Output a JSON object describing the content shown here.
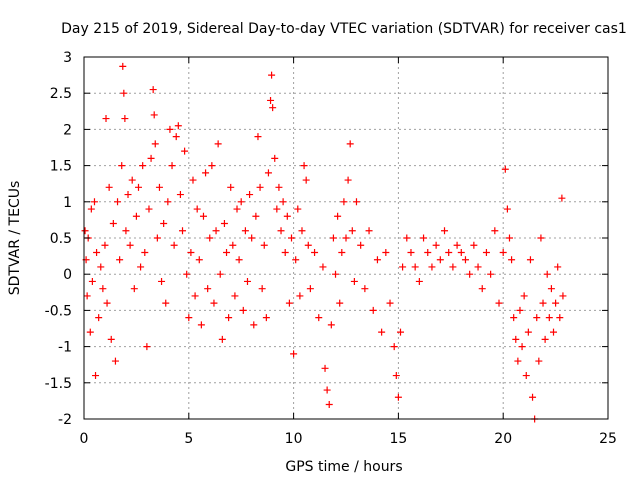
{
  "chart_data": {
    "type": "scatter",
    "title": "Day 215 of 2019, Sidereal Day-to-day VTEC variation (SDTVAR) for receiver cas1",
    "xlabel": "GPS time / hours",
    "ylabel": "SDTVAR / TECUs",
    "xlim": [
      0,
      25
    ],
    "ylim": [
      -2,
      3
    ],
    "x_ticks": [
      0,
      5,
      10,
      15,
      20,
      25
    ],
    "y_ticks": [
      -2,
      -1.5,
      -1,
      -0.5,
      0,
      0.5,
      1,
      1.5,
      2,
      2.5,
      3
    ],
    "x_tick_labels": [
      "0",
      "5",
      "10",
      "15",
      "20",
      "25"
    ],
    "y_tick_labels": [
      "-2",
      "-1.5",
      "-1",
      "-0.5",
      "0",
      "0.5",
      "1",
      "1.5",
      "2",
      "2.5",
      "3"
    ],
    "grid": true,
    "marker": "+",
    "color": "#ff0000",
    "series": [
      {
        "name": "SDTVAR",
        "points": [
          [
            0.05,
            0.6
          ],
          [
            0.1,
            0.2
          ],
          [
            0.15,
            -0.3
          ],
          [
            0.2,
            0.5
          ],
          [
            0.3,
            -0.8
          ],
          [
            0.35,
            0.9
          ],
          [
            0.4,
            -0.1
          ],
          [
            0.5,
            1.0
          ],
          [
            0.55,
            -1.4
          ],
          [
            0.6,
            0.3
          ],
          [
            0.7,
            -0.6
          ],
          [
            0.8,
            0.1
          ],
          [
            0.9,
            -0.2
          ],
          [
            1.0,
            0.4
          ],
          [
            1.05,
            2.15
          ],
          [
            1.1,
            -0.4
          ],
          [
            1.2,
            1.2
          ],
          [
            1.3,
            -0.9
          ],
          [
            1.4,
            0.7
          ],
          [
            1.5,
            -1.2
          ],
          [
            1.6,
            1.0
          ],
          [
            1.7,
            0.2
          ],
          [
            1.8,
            1.5
          ],
          [
            1.85,
            2.87
          ],
          [
            1.9,
            2.5
          ],
          [
            1.95,
            2.15
          ],
          [
            2.0,
            0.6
          ],
          [
            2.1,
            1.1
          ],
          [
            2.2,
            0.4
          ],
          [
            2.3,
            1.3
          ],
          [
            2.4,
            -0.2
          ],
          [
            2.5,
            0.8
          ],
          [
            2.6,
            1.2
          ],
          [
            2.7,
            0.1
          ],
          [
            2.8,
            1.5
          ],
          [
            2.9,
            0.3
          ],
          [
            3.0,
            -1.0
          ],
          [
            3.1,
            0.9
          ],
          [
            3.2,
            1.6
          ],
          [
            3.3,
            2.55
          ],
          [
            3.35,
            2.2
          ],
          [
            3.4,
            1.8
          ],
          [
            3.5,
            0.5
          ],
          [
            3.6,
            1.2
          ],
          [
            3.7,
            -0.1
          ],
          [
            3.8,
            0.7
          ],
          [
            3.9,
            -0.4
          ],
          [
            4.0,
            1.0
          ],
          [
            4.1,
            2.0
          ],
          [
            4.2,
            1.5
          ],
          [
            4.3,
            0.4
          ],
          [
            4.4,
            1.9
          ],
          [
            4.5,
            2.05
          ],
          [
            4.6,
            1.1
          ],
          [
            4.7,
            0.6
          ],
          [
            4.8,
            1.7
          ],
          [
            4.9,
            0.0
          ],
          [
            5.0,
            -0.6
          ],
          [
            5.1,
            0.3
          ],
          [
            5.2,
            1.3
          ],
          [
            5.3,
            -0.3
          ],
          [
            5.4,
            0.9
          ],
          [
            5.5,
            0.2
          ],
          [
            5.6,
            -0.7
          ],
          [
            5.7,
            0.8
          ],
          [
            5.8,
            1.4
          ],
          [
            5.9,
            -0.2
          ],
          [
            6.0,
            0.5
          ],
          [
            6.1,
            1.5
          ],
          [
            6.2,
            -0.4
          ],
          [
            6.3,
            0.6
          ],
          [
            6.4,
            1.8
          ],
          [
            6.5,
            0.0
          ],
          [
            6.6,
            -0.9
          ],
          [
            6.7,
            0.7
          ],
          [
            6.8,
            0.3
          ],
          [
            6.9,
            -0.6
          ],
          [
            7.0,
            1.2
          ],
          [
            7.1,
            0.4
          ],
          [
            7.2,
            -0.3
          ],
          [
            7.3,
            0.9
          ],
          [
            7.4,
            0.2
          ],
          [
            7.5,
            1.0
          ],
          [
            7.6,
            -0.5
          ],
          [
            7.7,
            0.6
          ],
          [
            7.8,
            -0.1
          ],
          [
            7.9,
            1.1
          ],
          [
            8.0,
            0.5
          ],
          [
            8.1,
            -0.7
          ],
          [
            8.2,
            0.8
          ],
          [
            8.3,
            1.9
          ],
          [
            8.4,
            1.2
          ],
          [
            8.5,
            -0.2
          ],
          [
            8.6,
            0.4
          ],
          [
            8.7,
            -0.6
          ],
          [
            8.8,
            1.4
          ],
          [
            8.9,
            2.4
          ],
          [
            8.95,
            2.75
          ],
          [
            9.0,
            2.3
          ],
          [
            9.1,
            1.6
          ],
          [
            9.2,
            0.9
          ],
          [
            9.3,
            1.2
          ],
          [
            9.4,
            0.6
          ],
          [
            9.5,
            1.0
          ],
          [
            9.6,
            0.3
          ],
          [
            9.7,
            0.8
          ],
          [
            9.8,
            -0.4
          ],
          [
            9.9,
            0.5
          ],
          [
            10.0,
            -1.1
          ],
          [
            10.1,
            0.2
          ],
          [
            10.2,
            0.9
          ],
          [
            10.3,
            -0.3
          ],
          [
            10.4,
            0.6
          ],
          [
            10.5,
            1.5
          ],
          [
            10.6,
            1.3
          ],
          [
            10.7,
            0.4
          ],
          [
            10.8,
            -0.2
          ],
          [
            11.0,
            0.3
          ],
          [
            11.2,
            -0.6
          ],
          [
            11.4,
            0.1
          ],
          [
            11.5,
            -1.3
          ],
          [
            11.6,
            -1.6
          ],
          [
            11.7,
            -1.8
          ],
          [
            11.8,
            -0.7
          ],
          [
            11.9,
            0.5
          ],
          [
            12.0,
            0.0
          ],
          [
            12.1,
            0.8
          ],
          [
            12.2,
            -0.4
          ],
          [
            12.3,
            0.3
          ],
          [
            12.4,
            1.0
          ],
          [
            12.5,
            0.5
          ],
          [
            12.6,
            1.3
          ],
          [
            12.7,
            1.8
          ],
          [
            12.8,
            0.6
          ],
          [
            12.9,
            -0.1
          ],
          [
            13.0,
            1.0
          ],
          [
            13.2,
            0.4
          ],
          [
            13.4,
            -0.2
          ],
          [
            13.6,
            0.6
          ],
          [
            13.8,
            -0.5
          ],
          [
            14.0,
            0.2
          ],
          [
            14.2,
            -0.8
          ],
          [
            14.4,
            0.3
          ],
          [
            14.6,
            -0.4
          ],
          [
            14.8,
            -1.0
          ],
          [
            14.9,
            -1.4
          ],
          [
            15.0,
            -1.7
          ],
          [
            15.1,
            -0.8
          ],
          [
            15.2,
            0.1
          ],
          [
            15.4,
            0.5
          ],
          [
            15.6,
            0.3
          ],
          [
            15.8,
            0.1
          ],
          [
            16.0,
            -0.1
          ],
          [
            16.2,
            0.5
          ],
          [
            16.4,
            0.3
          ],
          [
            16.6,
            0.1
          ],
          [
            16.8,
            0.4
          ],
          [
            17.0,
            0.2
          ],
          [
            17.2,
            0.6
          ],
          [
            17.4,
            0.3
          ],
          [
            17.6,
            0.1
          ],
          [
            17.8,
            0.4
          ],
          [
            18.0,
            0.3
          ],
          [
            18.2,
            0.2
          ],
          [
            18.4,
            0.0
          ],
          [
            18.6,
            0.4
          ],
          [
            18.8,
            0.1
          ],
          [
            19.0,
            -0.2
          ],
          [
            19.2,
            0.3
          ],
          [
            19.4,
            0.0
          ],
          [
            19.6,
            0.6
          ],
          [
            19.8,
            -0.4
          ],
          [
            20.0,
            0.3
          ],
          [
            20.1,
            1.45
          ],
          [
            20.2,
            0.9
          ],
          [
            20.3,
            0.5
          ],
          [
            20.4,
            0.2
          ],
          [
            20.5,
            -0.6
          ],
          [
            20.6,
            -0.9
          ],
          [
            20.7,
            -1.2
          ],
          [
            20.8,
            -0.5
          ],
          [
            20.9,
            -1.0
          ],
          [
            21.0,
            -0.3
          ],
          [
            21.1,
            -1.4
          ],
          [
            21.2,
            -0.8
          ],
          [
            21.3,
            0.2
          ],
          [
            21.4,
            -1.7
          ],
          [
            21.5,
            -2.0
          ],
          [
            21.6,
            -0.6
          ],
          [
            21.7,
            -1.2
          ],
          [
            21.8,
            0.5
          ],
          [
            21.9,
            -0.4
          ],
          [
            22.0,
            -0.9
          ],
          [
            22.1,
            0.0
          ],
          [
            22.2,
            -0.6
          ],
          [
            22.3,
            -0.2
          ],
          [
            22.4,
            -0.8
          ],
          [
            22.5,
            -0.4
          ],
          [
            22.6,
            0.1
          ],
          [
            22.7,
            -0.6
          ],
          [
            22.8,
            1.05
          ],
          [
            22.85,
            -0.3
          ]
        ]
      }
    ]
  }
}
